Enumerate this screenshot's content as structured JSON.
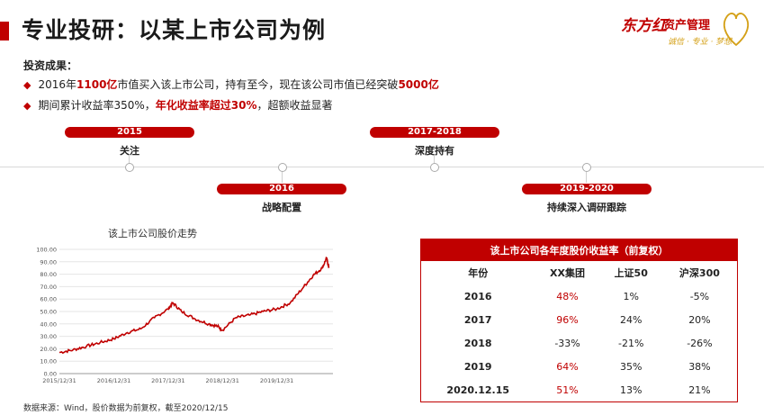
{
  "page": {
    "title": "专业投研：以某上市公司为例",
    "results_label": "投资成果："
  },
  "logo": {
    "brand": "东方红",
    "sub": "资产管理",
    "slogan": "诚信 · 专业 · 梦想"
  },
  "bullets": [
    {
      "p1": "2016年",
      "r1": "1100亿",
      "p2": "市值买入该上市公司，持有至今，现在该公司市值已经突破",
      "r2": "5000亿",
      "p3": ""
    },
    {
      "p1": "期间累计收益率350%，",
      "r1": "年化收益率超过30%",
      "p2": "，超额收益显著",
      "r2": "",
      "p3": ""
    }
  ],
  "timeline": [
    {
      "year": "2015",
      "label": "关注"
    },
    {
      "year": "2016",
      "label": "战略配置"
    },
    {
      "year": "2017-2018",
      "label": "深度持有"
    },
    {
      "year": "2019-2020",
      "label": "持续深入调研跟踪"
    }
  ],
  "chart_data": {
    "type": "line",
    "title": "该上市公司股价走势",
    "xlabel": "",
    "ylabel": "",
    "ylim": [
      0,
      100
    ],
    "ytick_labels": [
      "100.00",
      "90.00",
      "80.00",
      "70.00",
      "60.00",
      "50.00",
      "40.00",
      "30.00",
      "20.00",
      "10.00",
      "0.00"
    ],
    "xtick_labels": [
      "2015/12/31",
      "2016/12/31",
      "2017/12/31",
      "2018/12/31",
      "2019/12/31"
    ],
    "x": [
      "2015-12-31",
      "2016-03-31",
      "2016-06-30",
      "2016-09-30",
      "2016-12-31",
      "2017-03-31",
      "2017-06-30",
      "2017-09-30",
      "2017-12-31",
      "2018-01-31",
      "2018-03-31",
      "2018-06-30",
      "2018-09-30",
      "2018-11-30",
      "2018-12-31",
      "2019-03-31",
      "2019-06-30",
      "2019-09-30",
      "2019-12-31",
      "2020-03-31",
      "2020-06-30",
      "2020-08-31",
      "2020-10-31",
      "2020-11-30",
      "2020-12-15"
    ],
    "values": [
      17,
      19,
      22,
      25,
      28,
      33,
      36,
      45,
      52,
      57,
      50,
      44,
      40,
      38,
      35,
      45,
      47,
      50,
      52,
      57,
      70,
      79,
      85,
      93,
      85
    ],
    "line_color": "#c00000"
  },
  "table": {
    "title": "该上市公司各年度股价收益率（前复权）",
    "headers": [
      "年份",
      "XX集团",
      "上证50",
      "沪深300"
    ],
    "rows": [
      [
        "2016",
        "48%",
        "1%",
        "-5%"
      ],
      [
        "2017",
        "96%",
        "24%",
        "20%"
      ],
      [
        "2018",
        "-33%",
        "-21%",
        "-26%"
      ],
      [
        "2019",
        "64%",
        "35%",
        "38%"
      ],
      [
        "2020.12.15",
        "51%",
        "13%",
        "21%"
      ]
    ]
  },
  "footer": {
    "source": "数据来源：Wind，股价数据为前复权，截至2020/12/15"
  }
}
